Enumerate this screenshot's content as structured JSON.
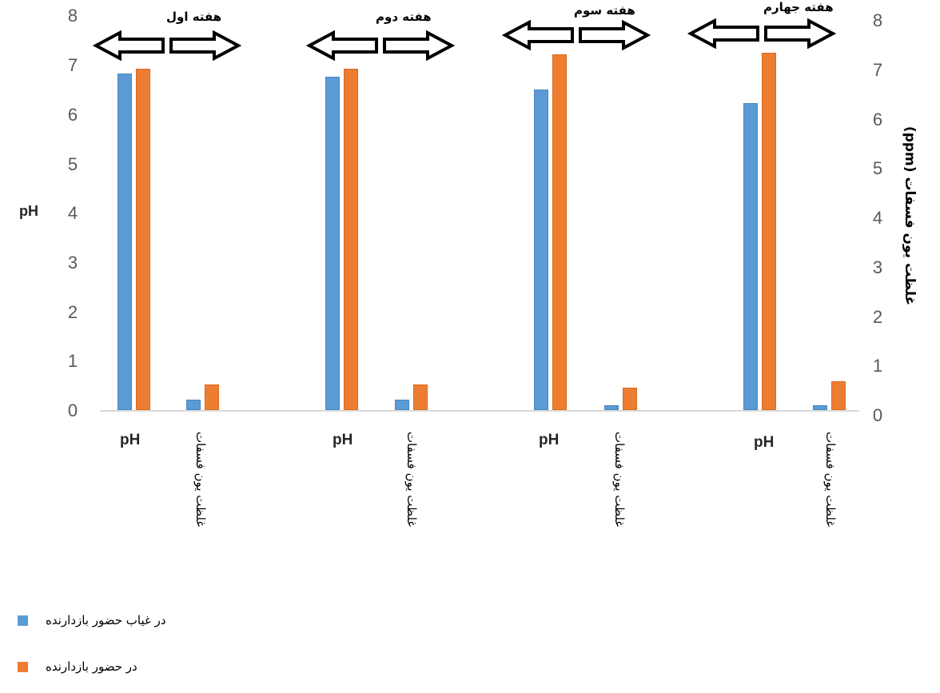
{
  "chart_data": {
    "type": "bar",
    "title": "",
    "groups": [
      "هفته اول",
      "هفته دوم",
      "هفته سوم",
      "هفته چهارم"
    ],
    "categories_per_group": [
      "pH",
      "غلظت یون فسفات"
    ],
    "series": [
      {
        "name": "در غیاب حضور بازدارنده",
        "color": "#5b9bd5",
        "values": {
          "pH": [
            6.83,
            6.77,
            6.51,
            6.23
          ],
          "phosphate": [
            0.21,
            0.21,
            0.1,
            0.1
          ]
        }
      },
      {
        "name": "در حضور بازدارنده",
        "color": "#ed7d31",
        "values": {
          "pH": [
            6.93,
            6.93,
            7.22,
            7.26
          ],
          "phosphate": [
            0.52,
            0.52,
            0.45,
            0.58
          ]
        }
      }
    ],
    "ylabel_left": "pH",
    "ylabel_right": "غلظت یون فسفات (ppm)",
    "ylim": [
      0,
      8
    ],
    "yticks": [
      0,
      1,
      2,
      3,
      4,
      5,
      6,
      7,
      8
    ],
    "grid": false,
    "legend_position": "bottom-left"
  },
  "axes": {
    "left_label": "pH",
    "right_label": "غلظت یون فسفات (ppm)",
    "ticks": [
      "0",
      "1",
      "2",
      "3",
      "4",
      "5",
      "6",
      "7",
      "8"
    ]
  },
  "weeks": [
    {
      "label": "هفته اول",
      "cat_ph": "pH",
      "cat_phos": "غلظت یون فسفات"
    },
    {
      "label": "هفته دوم",
      "cat_ph": "pH",
      "cat_phos": "غلظت یون فسفات"
    },
    {
      "label": "هفته سوم",
      "cat_ph": "pH",
      "cat_phos": "غلظت یون فسفات"
    },
    {
      "label": "هفته جهارم",
      "cat_ph": "pH",
      "cat_phos": "غلظت یون فسفات"
    }
  ],
  "legend": [
    {
      "label": "در غیاب حضور بازدارنده",
      "color": "#5b9bd5"
    },
    {
      "label": "در حضور بازدارنده",
      "color": "#ed7d31"
    }
  ]
}
